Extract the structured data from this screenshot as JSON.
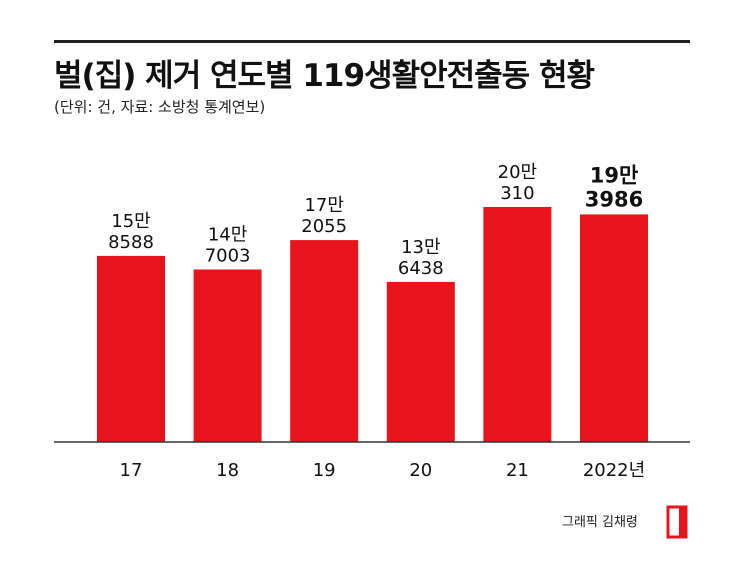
{
  "title": "벌(집) 제거 연도별 119생활안전출동 현황",
  "subtitle": "(단위: 건, 자료: 소방청 통계연보)",
  "credit": "그래픽 김채령",
  "colors": {
    "bar": "#e8141c",
    "axis": "#333333",
    "text": "#111111",
    "rule": "#222222"
  },
  "chart_data": {
    "type": "bar",
    "categories": [
      "17",
      "18",
      "19",
      "20",
      "21",
      "2022년"
    ],
    "values": [
      158588,
      147003,
      172055,
      136438,
      200310,
      193986
    ],
    "labels": [
      [
        "15만",
        "8588"
      ],
      [
        "14만",
        "7003"
      ],
      [
        "17만",
        "2055"
      ],
      [
        "13만",
        "6438"
      ],
      [
        "20만",
        "310"
      ],
      [
        "19만",
        "3986"
      ]
    ],
    "highlight_index": 5,
    "title": "벌(집) 제거 연도별 119생활안전출동 현황",
    "xlabel": "",
    "ylabel": "",
    "ylim": [
      0,
      200310
    ],
    "grid": false,
    "legend": "none"
  }
}
